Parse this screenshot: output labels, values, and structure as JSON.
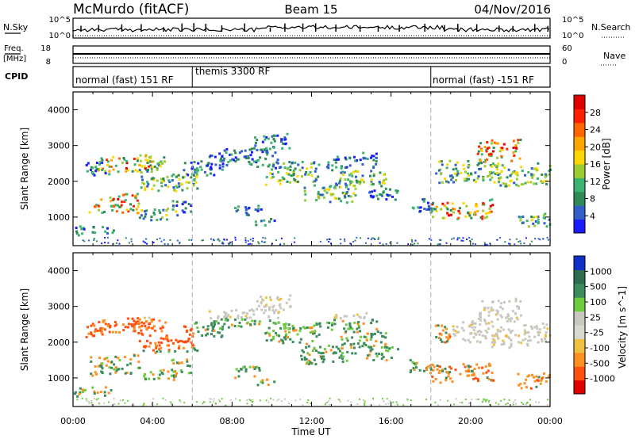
{
  "header": {
    "station": "McMurdo (fitACF)",
    "beam": "Beam 15",
    "date": "04/Nov/2016"
  },
  "noise_panel": {
    "left_label": "N.Sky",
    "right_label": "N.Search",
    "left_ticks": [
      "10^5",
      "10^0"
    ],
    "right_ticks": [
      "10^5",
      "10^0"
    ]
  },
  "freq_panel": {
    "left_label_1": "Freq.",
    "left_label_2": "[MHz]",
    "right_label": "Nave",
    "left_ticks": [
      "18",
      "8"
    ],
    "right_ticks": [
      "60",
      "0"
    ]
  },
  "cpid_panel": {
    "label": "CPID",
    "modes": [
      {
        "name": "normal (fast) 151 RF",
        "start_hour": 0,
        "end_hour": 6
      },
      {
        "name": "themis 3300 RF",
        "start_hour": 6,
        "end_hour": 18
      },
      {
        "name": "normal (fast) -151 RF",
        "start_hour": 18,
        "end_hour": 24
      }
    ]
  },
  "time_axis": {
    "label": "Time UT",
    "ticks": [
      "00:00",
      "04:00",
      "08:00",
      "12:00",
      "16:00",
      "20:00",
      "00:00"
    ]
  },
  "chart_data": [
    {
      "type": "heatmap",
      "title": "",
      "xlabel": "Time UT",
      "ylabel": "Slant Range [km]",
      "xlim": [
        0,
        24
      ],
      "ylim": [
        200,
        4500
      ],
      "yticks": [
        "1000",
        "2000",
        "3000",
        "4000"
      ],
      "colorbar": {
        "label": "Power [dB]",
        "ticks": [
          "4",
          "8",
          "12",
          "16",
          "20",
          "24",
          "28"
        ],
        "colors": [
          "#1a1aff",
          "#3060c8",
          "#2e8b57",
          "#3cb371",
          "#9acd32",
          "#ffd700",
          "#ffa500",
          "#ff6600",
          "#ff2000",
          "#e00000"
        ]
      }
    },
    {
      "type": "heatmap",
      "title": "",
      "xlabel": "Time UT",
      "ylabel": "Slant Range [km]",
      "xlim": [
        0,
        24
      ],
      "ylim": [
        200,
        4500
      ],
      "yticks": [
        "1000",
        "2000",
        "3000",
        "4000"
      ],
      "colorbar": {
        "label": "Velocity [m s^-1]",
        "ticks": [
          "1000",
          "500",
          "100",
          "25",
          "-25",
          "-100",
          "-500",
          "-1000"
        ],
        "colors": [
          "#1030c8",
          "#2e6e4e",
          "#3a8c5c",
          "#6ccc3c",
          "#c8c8c0",
          "#d8d8d0",
          "#f0c040",
          "#ff9020",
          "#ff5010",
          "#e00000"
        ]
      }
    }
  ]
}
